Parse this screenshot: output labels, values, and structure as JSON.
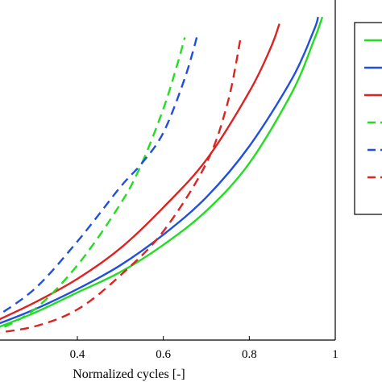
{
  "chart_data": {
    "type": "line",
    "title": "",
    "xlabel": "Normalized cycles [-]",
    "ylabel": "",
    "xlim": [
      0.2,
      1.0
    ],
    "ylim": [
      0,
      1
    ],
    "grid": false,
    "legend_position": "top-right (outside plot area)",
    "legend_entries_visible": false,
    "x_ticks": [
      {
        "value": 0.4,
        "label": "0.4"
      },
      {
        "value": 0.6,
        "label": "0.6"
      },
      {
        "value": 0.8,
        "label": "0.8"
      },
      {
        "value": 1.0,
        "label": "1"
      }
    ],
    "series": [
      {
        "color": "#22dd22",
        "style": "solid",
        "x": [
          0.2,
          0.3,
          0.4,
          0.5,
          0.6,
          0.7,
          0.8,
          0.9,
          0.95,
          0.97
        ],
        "y": [
          0.03,
          0.08,
          0.14,
          0.2,
          0.28,
          0.38,
          0.52,
          0.73,
          0.88,
          0.95
        ]
      },
      {
        "color": "#1f4fe0",
        "style": "solid",
        "x": [
          0.2,
          0.3,
          0.4,
          0.5,
          0.6,
          0.7,
          0.8,
          0.9,
          0.95,
          0.96
        ],
        "y": [
          0.04,
          0.09,
          0.15,
          0.22,
          0.31,
          0.42,
          0.57,
          0.77,
          0.91,
          0.95
        ]
      },
      {
        "color": "#dd2222",
        "style": "solid",
        "x": [
          0.2,
          0.3,
          0.4,
          0.5,
          0.6,
          0.7,
          0.8,
          0.85,
          0.87
        ],
        "y": [
          0.05,
          0.11,
          0.18,
          0.27,
          0.39,
          0.53,
          0.73,
          0.86,
          0.93
        ]
      },
      {
        "color": "#22dd22",
        "style": "dashed",
        "x": [
          0.2,
          0.3,
          0.4,
          0.5,
          0.55,
          0.6,
          0.63,
          0.65
        ],
        "y": [
          0.02,
          0.09,
          0.22,
          0.4,
          0.52,
          0.68,
          0.8,
          0.89
        ]
      },
      {
        "color": "#1f4fe0",
        "style": "dashed",
        "x": [
          0.2,
          0.3,
          0.4,
          0.5,
          0.55,
          0.6,
          0.65,
          0.68
        ],
        "y": [
          0.06,
          0.15,
          0.29,
          0.45,
          0.52,
          0.61,
          0.77,
          0.9
        ]
      },
      {
        "color": "#dd2222",
        "style": "dashed",
        "x": [
          0.2,
          0.3,
          0.4,
          0.5,
          0.6,
          0.7,
          0.75,
          0.78
        ],
        "y": [
          0.02,
          0.04,
          0.09,
          0.19,
          0.32,
          0.52,
          0.7,
          0.89
        ]
      }
    ]
  }
}
